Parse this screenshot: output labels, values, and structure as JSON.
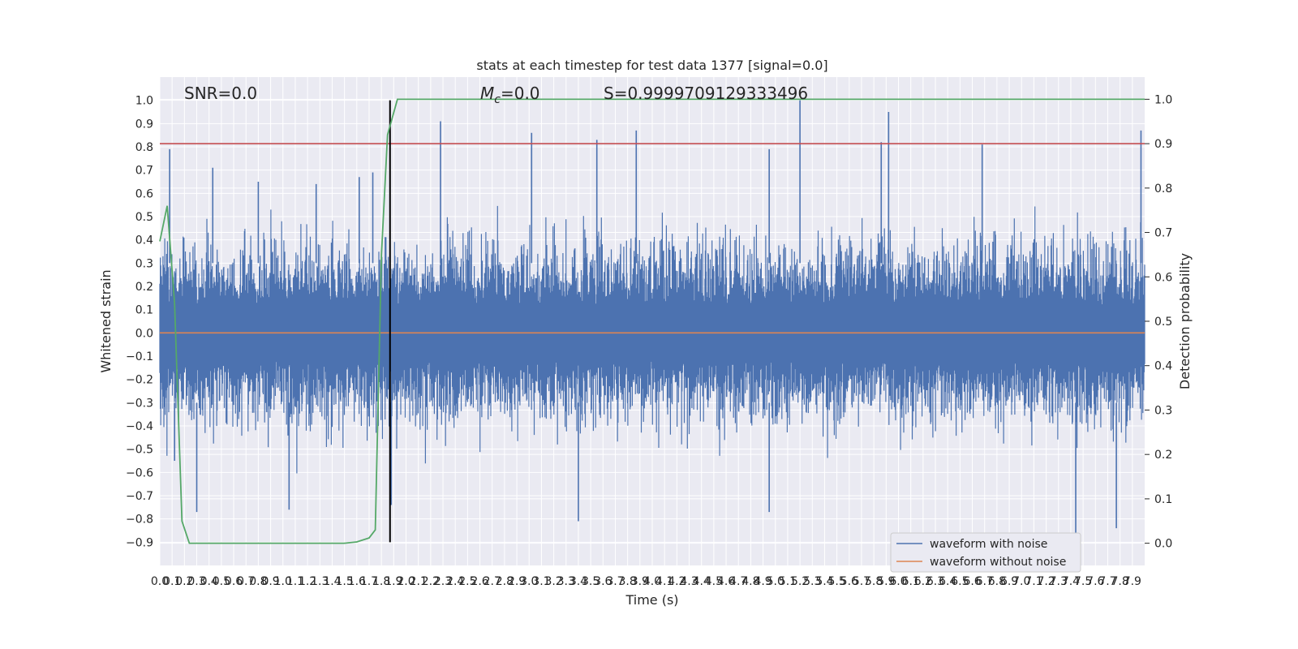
{
  "chart_data": {
    "type": "line",
    "title": "stats at each timestep for test data 1377 [signal=0.0]",
    "xlabel": "Time (s)",
    "ylabel": "Whitened strain",
    "ylabel_right": "Detection probability",
    "xlim": [
      0.0,
      8.0
    ],
    "ylim": [
      -1.0,
      1.1
    ],
    "ylim_right": [
      -0.05,
      1.05
    ],
    "grid": true,
    "legend_position": "bottom-right",
    "annotations": {
      "snr": "SNR=0.0",
      "mc_symbol": "M",
      "mc_sub": "c",
      "mc_value": "=0.0",
      "s": "S=0.9999709129333496"
    },
    "x_ticks": [
      "0.0",
      "0.1",
      "0.2",
      "0.3",
      "0.4",
      "0.5",
      "0.6",
      "0.7",
      "0.8",
      "0.9",
      "1.0",
      "1.1",
      "1.2",
      "1.3",
      "1.4",
      "1.5",
      "1.6",
      "1.7",
      "1.8",
      "1.9",
      "2.0",
      "2.1",
      "2.2",
      "2.3",
      "2.4",
      "2.5",
      "2.6",
      "2.7",
      "2.8",
      "2.9",
      "3.0",
      "3.1",
      "3.2",
      "3.3",
      "3.4",
      "3.5",
      "3.6",
      "3.7",
      "3.8",
      "3.9",
      "4.0",
      "4.1",
      "4.2",
      "4.3",
      "4.4",
      "4.5",
      "4.6",
      "4.7",
      "4.8",
      "4.9",
      "5.0",
      "5.1",
      "5.2",
      "5.3",
      "5.4",
      "5.5",
      "5.6",
      "5.7",
      "5.8",
      "5.9",
      "6.0",
      "6.1",
      "6.2",
      "6.3",
      "6.4",
      "6.5",
      "6.6",
      "6.7",
      "6.8",
      "6.9",
      "7.0",
      "7.1",
      "7.2",
      "7.3",
      "7.4",
      "7.5",
      "7.6",
      "7.7",
      "7.8",
      "7.9"
    ],
    "y_ticks": [
      "-0.9",
      "-0.8",
      "-0.7",
      "-0.6",
      "-0.5",
      "-0.4",
      "-0.3",
      "-0.2",
      "-0.1",
      "0.0",
      "0.1",
      "0.2",
      "0.3",
      "0.4",
      "0.5",
      "0.6",
      "0.7",
      "0.8",
      "0.9",
      "1.0"
    ],
    "y_ticks_right": [
      "0.0",
      "0.1",
      "0.2",
      "0.3",
      "0.4",
      "0.5",
      "0.6",
      "0.7",
      "0.8",
      "0.9",
      "1.0"
    ],
    "series": [
      {
        "name": "waveform with noise",
        "axis": "left",
        "color": "#4c72b0",
        "style": "dense noise band, approx ±0.3 typical amplitude",
        "peaks": [
          {
            "x": 0.08,
            "y": 0.79
          },
          {
            "x": 0.43,
            "y": 0.71
          },
          {
            "x": 0.8,
            "y": 0.65
          },
          {
            "x": 1.27,
            "y": 0.64
          },
          {
            "x": 1.62,
            "y": 0.67
          },
          {
            "x": 1.73,
            "y": 0.69
          },
          {
            "x": 2.28,
            "y": 0.91
          },
          {
            "x": 3.02,
            "y": 0.86
          },
          {
            "x": 3.55,
            "y": 0.83
          },
          {
            "x": 3.87,
            "y": 0.87
          },
          {
            "x": 4.95,
            "y": 0.79
          },
          {
            "x": 5.2,
            "y": 1.0
          },
          {
            "x": 5.86,
            "y": 0.82
          },
          {
            "x": 5.92,
            "y": 0.95
          },
          {
            "x": 6.68,
            "y": 0.81
          },
          {
            "x": 7.97,
            "y": 0.87
          }
        ],
        "troughs": [
          {
            "x": 0.12,
            "y": -0.55
          },
          {
            "x": 0.3,
            "y": -0.77
          },
          {
            "x": 1.05,
            "y": -0.76
          },
          {
            "x": 1.88,
            "y": -0.74
          },
          {
            "x": 3.4,
            "y": -0.81
          },
          {
            "x": 4.95,
            "y": -0.77
          },
          {
            "x": 7.44,
            "y": -0.89
          },
          {
            "x": 7.77,
            "y": -0.84
          }
        ]
      },
      {
        "name": "waveform without noise",
        "axis": "left",
        "color": "#dd8452",
        "x": [
          0.0,
          8.0
        ],
        "y": [
          0.0,
          0.0
        ]
      },
      {
        "name": "",
        "axis": "right",
        "color": "#55a868",
        "x": [
          0.0,
          0.06,
          0.12,
          0.18,
          0.24,
          0.3,
          0.5,
          1.0,
          1.5,
          1.6,
          1.7,
          1.75,
          1.8,
          1.85,
          1.93,
          2.0,
          8.0
        ],
        "y": [
          0.68,
          0.76,
          0.54,
          0.05,
          0.0,
          0.0,
          0.0,
          0.0,
          0.0,
          0.003,
          0.012,
          0.03,
          0.65,
          0.92,
          1.0,
          1.0,
          1.0
        ]
      }
    ],
    "reference_lines": [
      {
        "orientation": "horizontal",
        "axis": "right",
        "y": 0.9,
        "color": "#c44e52"
      },
      {
        "orientation": "vertical",
        "x": 1.87,
        "y_range": [
          -0.9,
          1.0
        ],
        "color": "#000000"
      }
    ]
  }
}
